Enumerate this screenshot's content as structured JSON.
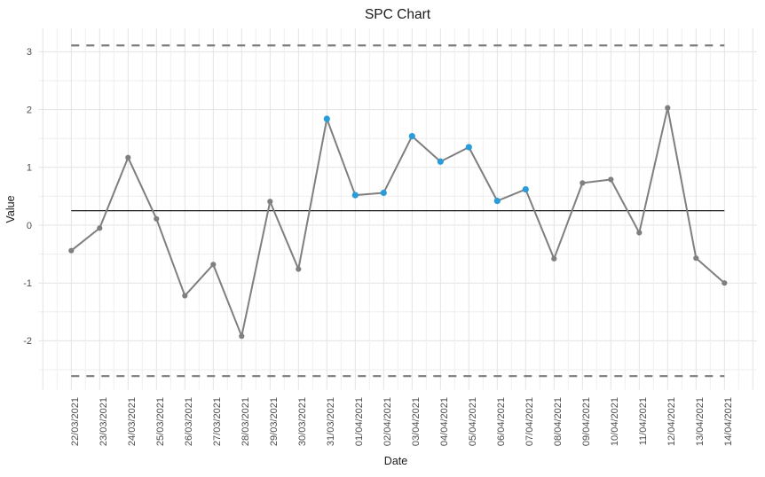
{
  "chart_data": {
    "type": "line",
    "title": "SPC Chart",
    "xlabel": "Date",
    "ylabel": "Value",
    "categories": [
      "22/03/2021",
      "23/03/2021",
      "24/03/2021",
      "25/03/2021",
      "26/03/2021",
      "27/03/2021",
      "28/03/2021",
      "29/03/2021",
      "30/03/2021",
      "31/03/2021",
      "01/04/2021",
      "02/04/2021",
      "03/04/2021",
      "04/04/2021",
      "05/04/2021",
      "06/04/2021",
      "07/04/2021",
      "08/04/2021",
      "09/04/2021",
      "10/04/2021",
      "11/04/2021",
      "12/04/2021",
      "13/04/2021",
      "14/04/2021"
    ],
    "values": [
      -0.44,
      -0.05,
      1.17,
      0.11,
      -1.22,
      -0.68,
      -1.92,
      0.41,
      -0.76,
      1.84,
      0.52,
      0.56,
      1.54,
      1.1,
      1.35,
      0.42,
      0.62,
      -0.58,
      0.73,
      0.79,
      -0.13,
      2.03,
      -0.57,
      -1.0
    ],
    "special_cause_indices": [
      9,
      10,
      11,
      12,
      13,
      14,
      15,
      16
    ],
    "center_line": 0.25,
    "upper_control_limit": 3.11,
    "lower_control_limit": -2.61,
    "yticks": [
      -2,
      -1,
      0,
      1,
      2,
      3
    ],
    "yminor": [
      -2.5,
      -1.5,
      -0.5,
      0.5,
      1.5,
      2.5
    ],
    "ylim": [
      -2.84,
      3.4
    ],
    "grid": "major+minor, light gray, white background",
    "legend_position": "none",
    "colors": {
      "line": "#7f7f7f",
      "point": "#7f7f7f",
      "special_cause_point": "#2b9cda",
      "control_limit_line": "#7b7b7b",
      "center_line": "#000000",
      "grid_major": "#e3e3e3",
      "grid_minor": "#eeeeee",
      "tick_label": "#4d4d4d",
      "axis_title": "#1a1a1a",
      "title": "#1a1a1a",
      "background": "#ffffff"
    }
  }
}
